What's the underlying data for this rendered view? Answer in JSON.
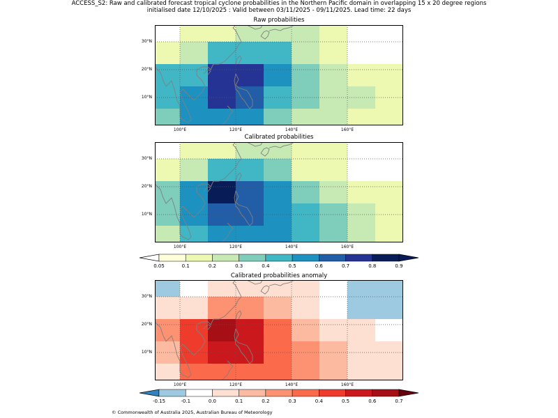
{
  "header": {
    "line1": "ACCESS_S2: Raw and calibrated forecast tropical cyclone probabilities in the Northern Pacific domain in overlapping 15 x 20 degree regions",
    "line2": "initialised date 12/10/2025 :  Valid between 03/11/2025 - 09/11/2025. Lead time: 22 days"
  },
  "footer": "© Commonwealth of Australia 2025, Australian Bureau of Meteorology",
  "axes": {
    "x_ticks": [
      {
        "lon": 100,
        "label": "100°E"
      },
      {
        "lon": 120,
        "label": "120°E"
      },
      {
        "lon": 140,
        "label": "140°E"
      },
      {
        "lon": 160,
        "label": "160°E"
      }
    ],
    "y_ticks": [
      {
        "lat": 10,
        "label": "10°N"
      },
      {
        "lat": 20,
        "label": "20°N"
      },
      {
        "lat": 30,
        "label": "30°N"
      }
    ],
    "lon_range": [
      91,
      180
    ],
    "lat_range": [
      0,
      36
    ]
  },
  "chart_data": [
    {
      "type": "heatmap",
      "title": "Raw probabilities",
      "colorbar": "prob",
      "lon_edges": [
        91,
        100,
        110,
        120,
        130,
        140,
        150,
        160,
        170,
        180
      ],
      "lat_edges": [
        0,
        6,
        14,
        22,
        30,
        36
      ],
      "rows_top_to_bottom": [
        [
          0.0,
          0.1,
          0.15,
          0.2,
          0.2,
          0.2,
          0.1,
          0.0,
          0.0
        ],
        [
          0.15,
          0.25,
          0.4,
          0.4,
          0.4,
          0.25,
          0.15,
          0.0,
          0.0
        ],
        [
          0.4,
          0.4,
          0.7,
          0.7,
          0.5,
          0.3,
          0.2,
          0.15,
          0.1
        ],
        [
          0.4,
          0.5,
          0.7,
          0.6,
          0.4,
          0.3,
          0.25,
          0.2,
          0.15
        ],
        [
          0.3,
          0.5,
          0.5,
          0.5,
          0.3,
          0.2,
          0.2,
          0.15,
          0.15
        ]
      ]
    },
    {
      "type": "heatmap",
      "title": "Calibrated probabilities",
      "colorbar": "prob",
      "lon_edges": [
        91,
        100,
        110,
        120,
        130,
        140,
        150,
        160,
        170,
        180
      ],
      "lat_edges": [
        0,
        6,
        14,
        22,
        30,
        36
      ],
      "rows_top_to_bottom": [
        [
          0.0,
          0.1,
          0.15,
          0.2,
          0.2,
          0.15,
          0.1,
          0.0,
          0.0
        ],
        [
          0.15,
          0.25,
          0.4,
          0.4,
          0.3,
          0.15,
          0.1,
          0.0,
          0.0
        ],
        [
          0.3,
          0.5,
          0.85,
          0.65,
          0.5,
          0.3,
          0.25,
          0.15,
          0.1
        ],
        [
          0.3,
          0.5,
          0.65,
          0.65,
          0.5,
          0.4,
          0.3,
          0.25,
          0.15
        ],
        [
          0.25,
          0.4,
          0.5,
          0.5,
          0.5,
          0.4,
          0.3,
          0.25,
          0.15
        ]
      ]
    },
    {
      "type": "heatmap",
      "title": "Calibrated probabilities anomaly",
      "colorbar": "anom",
      "lon_edges": [
        91,
        100,
        110,
        120,
        130,
        140,
        150,
        160,
        170,
        180
      ],
      "lat_edges": [
        0,
        6,
        14,
        22,
        30,
        36
      ],
      "rows_top_to_bottom": [
        [
          -0.12,
          -0.07,
          0.0,
          0.0,
          0.0,
          0.0,
          -0.07,
          -0.12,
          -0.12
        ],
        [
          0.0,
          0.05,
          0.25,
          0.25,
          0.15,
          0.0,
          -0.07,
          -0.12,
          -0.12
        ],
        [
          0.25,
          0.45,
          0.65,
          0.55,
          0.35,
          0.15,
          0.05,
          0.0,
          -0.07
        ],
        [
          0.15,
          0.45,
          0.55,
          0.55,
          0.35,
          0.25,
          0.15,
          0.05,
          0.0
        ],
        [
          0.05,
          0.35,
          0.35,
          0.35,
          0.35,
          0.25,
          0.15,
          0.05,
          0.0
        ]
      ]
    }
  ],
  "colorbars": {
    "prob": {
      "ticks": [
        "0.05",
        "0.1",
        "0.2",
        "0.3",
        "0.4",
        "0.5",
        "0.6",
        "0.7",
        "0.8",
        "0.9"
      ],
      "boundaries": [
        0.05,
        0.1,
        0.2,
        0.3,
        0.4,
        0.5,
        0.6,
        0.7,
        0.8,
        0.9
      ],
      "colors": [
        "#ffffd9",
        "#edf8b1",
        "#c7e9b4",
        "#7fcdbb",
        "#41b6c4",
        "#1d91c0",
        "#225ea8",
        "#253494",
        "#081d58"
      ],
      "under": "#ffffff",
      "over": "#081d58"
    },
    "anom": {
      "ticks": [
        "-0.15",
        "-0.1",
        "0.0",
        "0.1",
        "0.2",
        "0.3",
        "0.4",
        "0.5",
        "0.6",
        "0.7"
      ],
      "boundaries": [
        -0.15,
        -0.1,
        0,
        0.1,
        0.2,
        0.3,
        0.4,
        0.5,
        0.6,
        0.7
      ],
      "colors": [
        "#9ecae1",
        "#ffffff",
        "#fee0d2",
        "#fcbba1",
        "#fc9272",
        "#fb6a4a",
        "#ef3b2c",
        "#cb181d",
        "#a50f15"
      ],
      "under": "#3182bd",
      "over": "#67000d"
    }
  }
}
